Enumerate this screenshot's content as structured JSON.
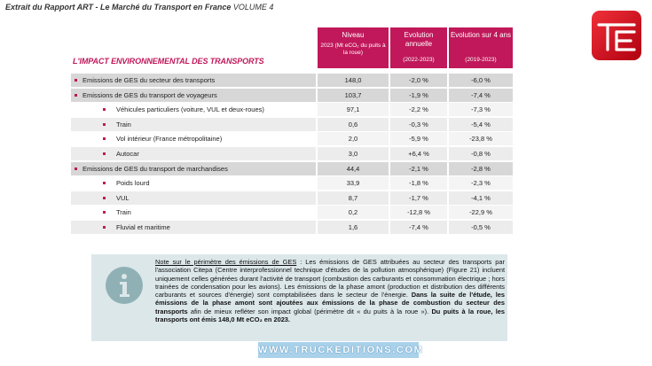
{
  "header": {
    "title": "Extrait du Rapport ART - Le Marché du Transport en France",
    "volume": "VOLUME 4"
  },
  "table": {
    "title": "L'IMPACT ENVIRONNEMENTAL DES TRANSPORTS",
    "columns": [
      {
        "title": "Niveau",
        "subtitle": "2023 (Mt eCO₂ du puits à la roue)"
      },
      {
        "title": "Evolution annuelle",
        "subtitle": "(2022-2023)"
      },
      {
        "title": "Evolution sur 4 ans",
        "subtitle": "(2019-2023)"
      }
    ],
    "groups": [
      {
        "label": "Emissions de GES du secteur des transports",
        "cells": [
          "148,0",
          "-2,0 %",
          "-6,0 %"
        ],
        "children": []
      },
      {
        "label": "Emissions de GES du transport de voyageurs",
        "cells": [
          "103,7",
          "-1,9 %",
          "-7,4 %"
        ],
        "children": [
          {
            "label": "Véhicules particuliers (voiture, VUL et deux-roues)",
            "cells": [
              "97,1",
              "-2,2 %",
              "-7,3 %"
            ]
          },
          {
            "label": "Train",
            "cells": [
              "0,6",
              "-0,3 %",
              "-5,4 %"
            ]
          },
          {
            "label": "Vol intérieur (France métropolitaine)",
            "cells": [
              "2,0",
              "-5,9 %",
              "-23,8 %"
            ]
          },
          {
            "label": "Autocar",
            "cells": [
              "3,0",
              "+6,4 %",
              "-0,8 %"
            ]
          }
        ]
      },
      {
        "label": "Emissions de GES du transport de marchandises",
        "cells": [
          "44,4",
          "-2,1 %",
          "-2,8 %"
        ],
        "children": [
          {
            "label": "Poids lourd",
            "cells": [
              "33,9",
              "-1,8 %",
              "-2,3 %"
            ]
          },
          {
            "label": "VUL",
            "cells": [
              "8,7",
              "-1,7 %",
              "-4,1 %"
            ]
          },
          {
            "label": "Train",
            "cells": [
              "0,2",
              "-12,8 %",
              "-22,9 %"
            ]
          },
          {
            "label": "Fluvial et maritime",
            "cells": [
              "1,6",
              "-7,4 %",
              "-0,5 %"
            ]
          }
        ]
      }
    ]
  },
  "note": {
    "lead": "Note sur le périmètre des émissions de GES",
    "body1": " : Les émissions de GES attribuées au secteur des transports par l'association Citepa (Centre interprofessionnel technique d'études de la pollution atmosphérique) (Figure 21) incluent uniquement celles générées durant l'activité de transport (combustion des carburants et consommation électrique ; hors trainées de condensation pour les avions). Les émissions de la phase amont (production et distribution des différents carburants et sources d'énergie) sont comptabilisées dans le secteur de l'énergie. ",
    "bold1": "Dans la suite de l'étude, les émissions de la phase amont sont ajoutées aux émissions de la phase de combustion du secteur des transports",
    "body2": " afin de mieux refléter son impact global (périmètre dit « du puits à la roue »). ",
    "bold2": "Du puits à la roue, les transports ont émis 148,0 Mt eCO₂ en 2023."
  },
  "watermark": "WWW.TRUCKEDITIONS.COM"
}
